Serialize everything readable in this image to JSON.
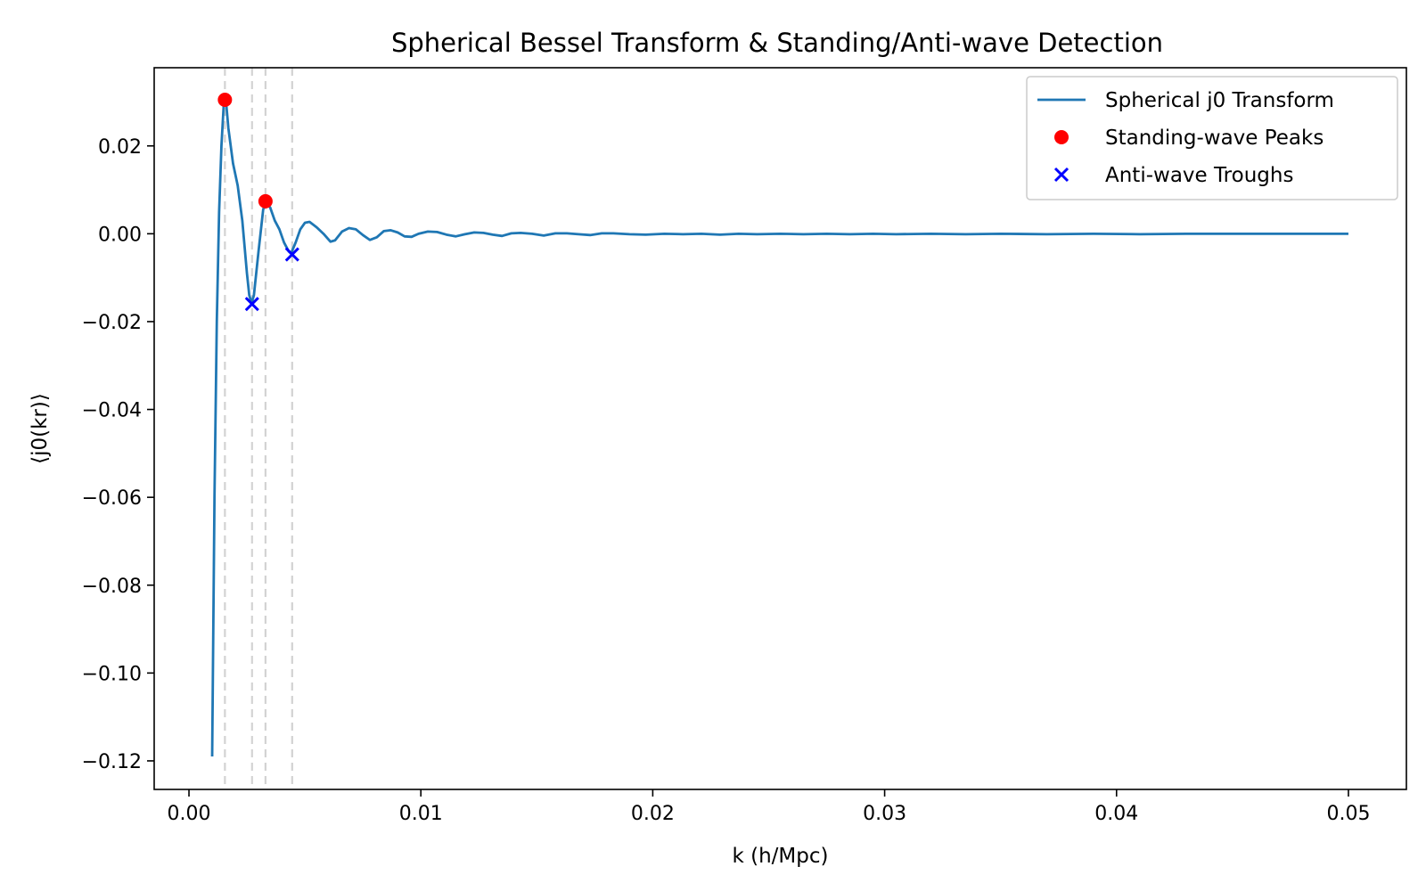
{
  "chart_data": {
    "type": "line",
    "title": "Spherical Bessel Transform & Standing/Anti-wave Detection",
    "xlabel": "k (h/Mpc)",
    "ylabel": "⟨j0(kr)⟩",
    "xlim": [
      -0.0015,
      0.0525
    ],
    "ylim": [
      -0.1265,
      0.0378
    ],
    "x_ticks": [
      0.0,
      0.01,
      0.02,
      0.03,
      0.04,
      0.05
    ],
    "x_tick_labels": [
      "0.00",
      "0.01",
      "0.02",
      "0.03",
      "0.04",
      "0.05"
    ],
    "y_ticks": [
      -0.12,
      -0.1,
      -0.08,
      -0.06,
      -0.04,
      -0.02,
      0.0,
      0.02
    ],
    "y_tick_labels": [
      "−0.12",
      "−0.10",
      "−0.08",
      "−0.06",
      "−0.04",
      "−0.02",
      "0.00",
      "0.02"
    ],
    "grid": false,
    "legend_position": "top-right",
    "series": [
      {
        "name": "Spherical j0 Transform",
        "color": "#1f77b4",
        "style": "line",
        "points": [
          [
            0.001,
            -0.119
          ],
          [
            0.0011,
            -0.06
          ],
          [
            0.0012,
            -0.02
          ],
          [
            0.0013,
            0.005
          ],
          [
            0.0014,
            0.02
          ],
          [
            0.0015,
            0.0295
          ],
          [
            0.0016,
            0.03
          ],
          [
            0.0017,
            0.024
          ],
          [
            0.0019,
            0.016
          ],
          [
            0.0021,
            0.011
          ],
          [
            0.0023,
            0.003
          ],
          [
            0.0025,
            -0.009
          ],
          [
            0.0026,
            -0.014
          ],
          [
            0.0027,
            -0.0158
          ],
          [
            0.0028,
            -0.014
          ],
          [
            0.003,
            -0.004
          ],
          [
            0.0032,
            0.0055
          ],
          [
            0.0033,
            0.0072
          ],
          [
            0.0035,
            0.006
          ],
          [
            0.0037,
            0.003
          ],
          [
            0.0039,
            0.001
          ],
          [
            0.0041,
            -0.002
          ],
          [
            0.0043,
            -0.004
          ],
          [
            0.0044,
            -0.0045
          ],
          [
            0.0046,
            -0.002
          ],
          [
            0.0048,
            0.001
          ],
          [
            0.005,
            0.0025
          ],
          [
            0.0052,
            0.0027
          ],
          [
            0.0055,
            0.0015
          ],
          [
            0.0058,
            0.0
          ],
          [
            0.0061,
            -0.0018
          ],
          [
            0.0063,
            -0.0015
          ],
          [
            0.0066,
            0.0005
          ],
          [
            0.0069,
            0.0013
          ],
          [
            0.0072,
            0.001
          ],
          [
            0.0075,
            -0.0003
          ],
          [
            0.0078,
            -0.0014
          ],
          [
            0.0081,
            -0.0008
          ],
          [
            0.0084,
            0.0006
          ],
          [
            0.0087,
            0.0008
          ],
          [
            0.009,
            0.0003
          ],
          [
            0.0093,
            -0.0006
          ],
          [
            0.0096,
            -0.0007
          ],
          [
            0.0099,
            0.0
          ],
          [
            0.0103,
            0.0005
          ],
          [
            0.0107,
            0.0004
          ],
          [
            0.0111,
            -0.0002
          ],
          [
            0.0115,
            -0.0006
          ],
          [
            0.0119,
            -0.0001
          ],
          [
            0.0123,
            0.0003
          ],
          [
            0.0127,
            0.0002
          ],
          [
            0.0131,
            -0.0002
          ],
          [
            0.0135,
            -0.0005
          ],
          [
            0.0139,
            0.0001
          ],
          [
            0.0143,
            0.0002
          ],
          [
            0.0148,
            0.0
          ],
          [
            0.0153,
            -0.0004
          ],
          [
            0.0158,
            0.0001
          ],
          [
            0.0163,
            0.0001
          ],
          [
            0.0168,
            -0.0001
          ],
          [
            0.0173,
            -0.0003
          ],
          [
            0.0178,
            0.0001
          ],
          [
            0.0183,
            0.0001
          ],
          [
            0.019,
            -0.0001
          ],
          [
            0.0197,
            -0.0002
          ],
          [
            0.0205,
            0.0
          ],
          [
            0.0213,
            -0.0001
          ],
          [
            0.0221,
            0.0
          ],
          [
            0.0229,
            -0.0002
          ],
          [
            0.0237,
            0.0
          ],
          [
            0.0245,
            -0.0001
          ],
          [
            0.0255,
            0.0
          ],
          [
            0.0265,
            -0.0001
          ],
          [
            0.0275,
            0.0
          ],
          [
            0.0285,
            -0.0001
          ],
          [
            0.0295,
            0.0
          ],
          [
            0.0305,
            -0.0001
          ],
          [
            0.032,
            0.0
          ],
          [
            0.0335,
            -0.0001
          ],
          [
            0.035,
            0.0
          ],
          [
            0.037,
            -0.0001
          ],
          [
            0.039,
            0.0
          ],
          [
            0.041,
            -0.0001
          ],
          [
            0.043,
            0.0
          ],
          [
            0.045,
            0.0
          ],
          [
            0.047,
            0.0
          ],
          [
            0.049,
            0.0
          ],
          [
            0.05,
            0.0
          ]
        ]
      },
      {
        "name": "Standing-wave Peaks",
        "color": "#ff0000",
        "style": "circle",
        "points": [
          [
            0.00155,
            0.0305
          ],
          [
            0.0033,
            0.0074
          ]
        ]
      },
      {
        "name": "Anti-wave Troughs",
        "color": "#0000ff",
        "style": "x",
        "points": [
          [
            0.00272,
            -0.016
          ],
          [
            0.00445,
            -0.0047
          ]
        ]
      }
    ],
    "vertical_lines": {
      "color": "#d3d3d3",
      "style": "dashed",
      "x": [
        0.00155,
        0.00272,
        0.0033,
        0.00445
      ]
    }
  }
}
